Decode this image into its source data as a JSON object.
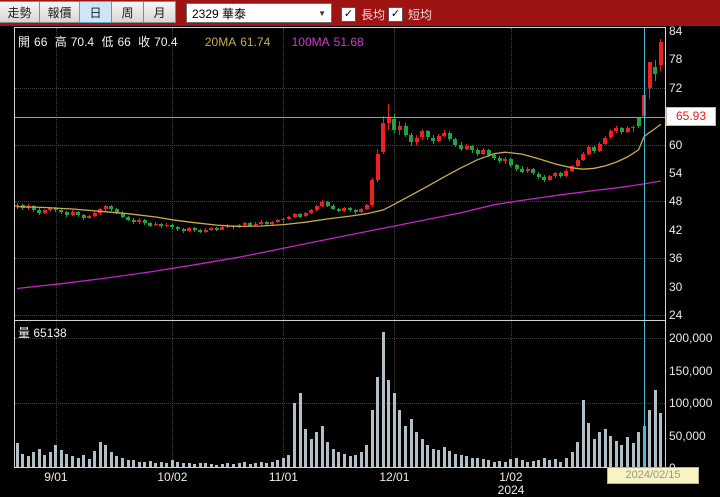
{
  "toolbar": {
    "nav_buttons": [
      {
        "label": "走勢"
      },
      {
        "label": "報價"
      }
    ],
    "period_buttons": [
      {
        "label": "日",
        "selected": true
      },
      {
        "label": "周",
        "selected": false
      },
      {
        "label": "月",
        "selected": false
      }
    ],
    "symbol_combo": {
      "value": "2329 華泰",
      "caret": "▼"
    },
    "checkboxes": [
      {
        "label": "長均",
        "checked": true
      },
      {
        "label": "短均",
        "checked": true
      }
    ],
    "check_glyph": "✓"
  },
  "ohlc_bar": {
    "open_label": "開",
    "open": "66",
    "high_label": "高",
    "high": "70.4",
    "low_label": "低",
    "low": "66",
    "close_label": "收",
    "close": "70.4",
    "ma20_label": "20MA",
    "ma20_value": "61.74",
    "ma100_label": "100MA",
    "ma100_value": "51.68"
  },
  "price_axis": {
    "ticks": [
      "84",
      "78",
      "72",
      "60",
      "54",
      "48",
      "42",
      "36",
      "30",
      "24"
    ],
    "tick_values": [
      84,
      78,
      72,
      60,
      54,
      48,
      42,
      36,
      30,
      24
    ],
    "current_price": "65.93",
    "current_price_value": 65.93
  },
  "volume_header": {
    "label": "量",
    "value": "65138"
  },
  "volume_axis": {
    "ticks": [
      "200,000",
      "150,000",
      "100,000",
      "50,000",
      "0"
    ],
    "tick_values": [
      200000,
      150000,
      100000,
      50000,
      0
    ]
  },
  "x_axis": {
    "labels": [
      "9/01",
      "10/02",
      "11/01",
      "12/01",
      "1/02"
    ],
    "anchor_indices": [
      7,
      28,
      48,
      68,
      89
    ],
    "year_label": "2024",
    "crosshair_tooltip": "2024/02/15"
  },
  "colors": {
    "toolbar_bg": "#9e1412",
    "up": "#ef2020",
    "down": "#1fa33e",
    "ma20": "#c9ab4f",
    "ma100": "#c224c2",
    "crosshair": "#45bcca",
    "volume_bar": "#b3bfc7",
    "volume_highlight": "#3cc9b6",
    "grid": "#424242",
    "badge_text": "#e02020"
  },
  "chart_data": {
    "type": "candlestick+volume",
    "symbol": "2329 華泰",
    "ohlc_format": [
      "open",
      "high",
      "low",
      "close",
      "volume"
    ],
    "price_range": [
      24,
      84
    ],
    "volume_range": [
      0,
      200000
    ],
    "price_gridlines": [
      72,
      60,
      48,
      36,
      24
    ],
    "volume_gridlines": [
      200000,
      100000
    ],
    "crosshair_index": 113,
    "crosshair_price": 65.93,
    "candles": [
      [
        46.8,
        47.6,
        46.3,
        47.2,
        38000
      ],
      [
        47.2,
        47.5,
        46.2,
        46.6,
        22000
      ],
      [
        46.6,
        47.4,
        46.2,
        47.0,
        18000
      ],
      [
        47.0,
        47.2,
        45.8,
        46.2,
        25000
      ],
      [
        46.2,
        46.6,
        45.2,
        45.6,
        30000
      ],
      [
        45.6,
        46.4,
        45.3,
        46.1,
        20000
      ],
      [
        46.1,
        46.9,
        45.8,
        46.6,
        24000
      ],
      [
        46.6,
        46.9,
        45.8,
        46.2,
        35000
      ],
      [
        46.2,
        46.5,
        45.3,
        45.7,
        28000
      ],
      [
        45.7,
        46.0,
        44.8,
        45.2,
        22000
      ],
      [
        45.2,
        46.1,
        45.0,
        45.8,
        18000
      ],
      [
        45.8,
        46.0,
        44.7,
        45.1,
        16000
      ],
      [
        45.1,
        45.4,
        44.1,
        44.5,
        20000
      ],
      [
        44.5,
        45.2,
        44.2,
        44.9,
        14000
      ],
      [
        44.9,
        45.8,
        44.6,
        45.5,
        26000
      ],
      [
        45.5,
        46.6,
        45.2,
        46.3,
        40000
      ],
      [
        46.3,
        47.3,
        46.0,
        47.0,
        36000
      ],
      [
        47.0,
        47.2,
        46.0,
        46.4,
        24000
      ],
      [
        46.4,
        46.7,
        45.3,
        45.6,
        18000
      ],
      [
        45.6,
        45.9,
        44.4,
        44.7,
        15000
      ],
      [
        44.7,
        45.0,
        43.8,
        44.1,
        13000
      ],
      [
        44.1,
        44.4,
        43.2,
        43.6,
        12000
      ],
      [
        43.6,
        44.4,
        43.3,
        44.0,
        10000
      ],
      [
        44.0,
        44.2,
        43.1,
        43.4,
        9000
      ],
      [
        43.4,
        43.7,
        42.6,
        42.9,
        11000
      ],
      [
        42.9,
        43.6,
        42.7,
        43.3,
        8000
      ],
      [
        43.3,
        43.5,
        42.4,
        42.7,
        9000
      ],
      [
        42.7,
        43.4,
        42.5,
        43.0,
        7000
      ],
      [
        43.0,
        43.2,
        42.1,
        42.5,
        12000
      ],
      [
        42.5,
        42.8,
        41.8,
        42.1,
        9000
      ],
      [
        42.1,
        42.4,
        41.4,
        41.8,
        8000
      ],
      [
        41.8,
        42.6,
        41.6,
        42.3,
        7000
      ],
      [
        42.3,
        42.5,
        41.5,
        41.9,
        6000
      ],
      [
        41.9,
        42.2,
        41.2,
        41.5,
        8000
      ],
      [
        41.5,
        42.3,
        41.3,
        42.0,
        7000
      ],
      [
        42.0,
        42.7,
        41.8,
        42.4,
        6000
      ],
      [
        42.4,
        42.6,
        41.7,
        42.0,
        5000
      ],
      [
        42.0,
        42.8,
        41.9,
        42.5,
        6000
      ],
      [
        42.5,
        43.2,
        42.3,
        42.9,
        8000
      ],
      [
        42.9,
        43.1,
        42.2,
        42.5,
        6000
      ],
      [
        42.5,
        43.3,
        42.4,
        43.0,
        7000
      ],
      [
        43.0,
        43.7,
        42.8,
        43.4,
        9000
      ],
      [
        43.4,
        43.6,
        42.7,
        42.9,
        6000
      ],
      [
        42.9,
        43.6,
        42.8,
        43.3,
        7000
      ],
      [
        43.3,
        44.0,
        43.1,
        43.7,
        10000
      ],
      [
        43.7,
        43.9,
        43.0,
        43.2,
        8000
      ],
      [
        43.2,
        43.9,
        43.1,
        43.6,
        9000
      ],
      [
        43.6,
        44.3,
        43.4,
        44.0,
        12000
      ],
      [
        44.0,
        44.5,
        43.5,
        44.2,
        16000
      ],
      [
        44.2,
        45.0,
        44.0,
        44.7,
        20000
      ],
      [
        44.7,
        45.6,
        44.5,
        45.3,
        100000
      ],
      [
        45.3,
        45.5,
        44.4,
        44.8,
        115000
      ],
      [
        44.8,
        45.8,
        44.6,
        45.5,
        60000
      ],
      [
        45.5,
        46.5,
        45.3,
        46.2,
        45000
      ],
      [
        46.2,
        47.3,
        46.0,
        47.0,
        55000
      ],
      [
        47.0,
        48.2,
        46.8,
        47.8,
        65000
      ],
      [
        47.8,
        48.0,
        46.8,
        47.1,
        40000
      ],
      [
        47.1,
        47.4,
        46.1,
        46.4,
        30000
      ],
      [
        46.4,
        46.7,
        45.7,
        46.0,
        25000
      ],
      [
        46.0,
        46.9,
        45.8,
        46.6,
        22000
      ],
      [
        46.6,
        46.8,
        45.8,
        46.1,
        18000
      ],
      [
        46.1,
        46.4,
        45.4,
        45.7,
        20000
      ],
      [
        45.7,
        46.6,
        45.5,
        46.3,
        24000
      ],
      [
        46.3,
        47.5,
        46.1,
        47.2,
        35000
      ],
      [
        47.2,
        53.0,
        46.9,
        52.5,
        90000
      ],
      [
        52.5,
        59.0,
        52.0,
        58.0,
        140000
      ],
      [
        58.5,
        66.0,
        58.0,
        64.5,
        210000
      ],
      [
        64.5,
        68.5,
        63.0,
        65.8,
        135000
      ],
      [
        65.5,
        66.5,
        62.5,
        63.0,
        115000
      ],
      [
        63.0,
        65.0,
        62.0,
        64.0,
        90000
      ],
      [
        64.0,
        64.5,
        61.5,
        62.0,
        65000
      ],
      [
        62.0,
        62.5,
        59.8,
        60.5,
        75000
      ],
      [
        60.5,
        62.0,
        60.0,
        61.5,
        55000
      ],
      [
        61.5,
        63.2,
        61.0,
        62.8,
        45000
      ],
      [
        62.8,
        63.0,
        61.0,
        61.5,
        35000
      ],
      [
        61.5,
        62.0,
        60.2,
        60.8,
        30000
      ],
      [
        60.8,
        62.2,
        60.5,
        61.8,
        28000
      ],
      [
        61.8,
        63.0,
        61.5,
        62.5,
        32000
      ],
      [
        62.5,
        62.8,
        60.8,
        61.2,
        26000
      ],
      [
        61.2,
        61.5,
        59.5,
        60.0,
        22000
      ],
      [
        60.0,
        60.5,
        58.6,
        59.0,
        20000
      ],
      [
        59.0,
        60.2,
        58.8,
        59.8,
        18000
      ],
      [
        59.8,
        60.0,
        58.3,
        58.8,
        16000
      ],
      [
        58.8,
        59.2,
        57.6,
        58.0,
        15000
      ],
      [
        58.0,
        59.2,
        57.8,
        58.8,
        14000
      ],
      [
        58.8,
        59.0,
        57.3,
        57.8,
        12000
      ],
      [
        57.8,
        58.2,
        56.8,
        57.2,
        10000
      ],
      [
        57.2,
        57.6,
        56.1,
        56.5,
        11000
      ],
      [
        56.5,
        57.3,
        56.0,
        57.0,
        9000
      ],
      [
        57.0,
        57.2,
        55.3,
        55.6,
        14000
      ],
      [
        55.6,
        56.0,
        54.4,
        54.8,
        16000
      ],
      [
        54.8,
        55.5,
        54.0,
        54.3,
        12000
      ],
      [
        54.3,
        55.2,
        54.0,
        54.9,
        10000
      ],
      [
        54.9,
        55.1,
        53.6,
        53.9,
        11000
      ],
      [
        53.9,
        54.3,
        52.8,
        53.2,
        13000
      ],
      [
        53.2,
        53.5,
        52.0,
        52.6,
        15000
      ],
      [
        52.6,
        53.6,
        52.3,
        53.3,
        12000
      ],
      [
        53.3,
        54.3,
        53.0,
        54.0,
        14000
      ],
      [
        54.0,
        54.2,
        53.0,
        53.4,
        10000
      ],
      [
        53.4,
        54.8,
        53.2,
        54.5,
        16000
      ],
      [
        54.5,
        55.8,
        54.2,
        55.5,
        25000
      ],
      [
        55.5,
        57.2,
        55.2,
        56.8,
        40000
      ],
      [
        56.8,
        58.4,
        56.5,
        58.0,
        105000
      ],
      [
        58.0,
        59.9,
        57.8,
        59.5,
        70000
      ],
      [
        59.5,
        59.8,
        58.2,
        58.6,
        45000
      ],
      [
        58.6,
        60.6,
        58.4,
        60.2,
        55000
      ],
      [
        60.2,
        61.9,
        60.0,
        61.5,
        60000
      ],
      [
        61.5,
        63.2,
        61.2,
        62.8,
        50000
      ],
      [
        62.8,
        63.9,
        62.4,
        63.5,
        42000
      ],
      [
        63.5,
        63.8,
        62.2,
        62.6,
        35000
      ],
      [
        62.6,
        64.0,
        62.4,
        63.6,
        48000
      ],
      [
        63.6,
        64.2,
        62.6,
        63.8,
        38000
      ],
      [
        65.6,
        65.9,
        63.4,
        63.9,
        55000
      ],
      [
        66.0,
        70.4,
        66.0,
        70.4,
        65138
      ],
      [
        72.0,
        77.4,
        69.6,
        77.4,
        90000
      ],
      [
        76.3,
        77.8,
        73.5,
        74.9,
        120000
      ],
      [
        76.9,
        82.4,
        75.5,
        81.6,
        85000
      ]
    ],
    "ma20_points": [
      [
        0,
        46.9
      ],
      [
        5,
        46.7
      ],
      [
        10,
        46.4
      ],
      [
        15,
        45.9
      ],
      [
        20,
        45.4
      ],
      [
        25,
        44.7
      ],
      [
        28,
        44.1
      ],
      [
        32,
        43.5
      ],
      [
        36,
        43.0
      ],
      [
        40,
        42.7
      ],
      [
        44,
        42.8
      ],
      [
        48,
        43.1
      ],
      [
        52,
        43.6
      ],
      [
        56,
        44.3
      ],
      [
        60,
        44.9
      ],
      [
        63,
        45.4
      ],
      [
        66,
        46.2
      ],
      [
        68,
        47.4
      ],
      [
        71,
        49.3
      ],
      [
        74,
        51.2
      ],
      [
        77,
        53.2
      ],
      [
        80,
        55.1
      ],
      [
        83,
        56.8
      ],
      [
        86,
        58.1
      ],
      [
        88,
        58.4
      ],
      [
        91,
        58.0
      ],
      [
        94,
        57.0
      ],
      [
        97,
        55.9
      ],
      [
        100,
        55.1
      ],
      [
        102,
        54.8
      ],
      [
        104,
        55.0
      ],
      [
        106,
        55.5
      ],
      [
        108,
        56.3
      ],
      [
        110,
        57.4
      ],
      [
        112,
        58.9
      ],
      [
        113,
        61.7
      ],
      [
        114,
        62.6
      ],
      [
        115,
        63.4
      ],
      [
        116,
        64.3
      ]
    ],
    "ma100_points": [
      [
        0,
        29.6
      ],
      [
        8,
        30.6
      ],
      [
        16,
        31.8
      ],
      [
        24,
        33.1
      ],
      [
        32,
        34.6
      ],
      [
        40,
        36.2
      ],
      [
        48,
        38.1
      ],
      [
        56,
        40.0
      ],
      [
        62,
        41.4
      ],
      [
        68,
        42.8
      ],
      [
        74,
        44.2
      ],
      [
        80,
        45.6
      ],
      [
        86,
        47.3
      ],
      [
        92,
        48.4
      ],
      [
        98,
        49.4
      ],
      [
        104,
        50.3
      ],
      [
        109,
        51.0
      ],
      [
        113,
        51.7
      ],
      [
        116,
        52.3
      ]
    ]
  }
}
